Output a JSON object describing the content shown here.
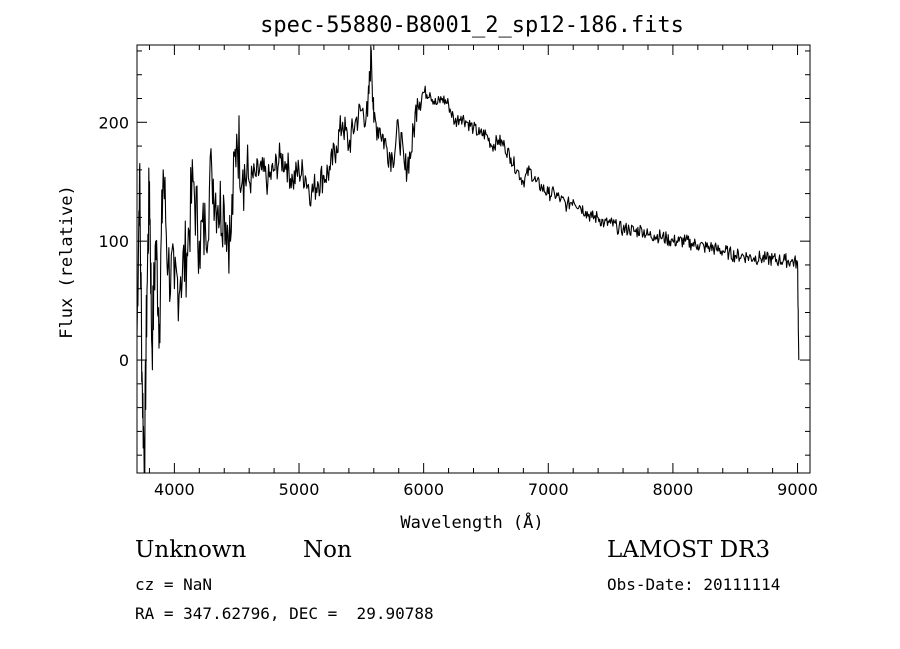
{
  "chart_data": {
    "type": "line",
    "title": "spec-55880-B8001_2_sp12-186.fits",
    "xlabel": "Wavelength (Å)",
    "ylabel": "Flux (relative)",
    "xlim": [
      3700,
      9100
    ],
    "ylim": [
      -95,
      265
    ],
    "x_ticks": [
      4000,
      5000,
      6000,
      7000,
      8000,
      9000
    ],
    "y_ticks": [
      0,
      100,
      200
    ],
    "grid": false,
    "series": [
      {
        "x": [
          3700,
          3720,
          3740,
          3760,
          3780,
          3800,
          3820,
          3850,
          3880,
          3910,
          3950,
          4000,
          4050,
          4100,
          4150,
          4200,
          4250,
          4300,
          4350,
          4400,
          4450,
          4500,
          4550,
          4600,
          4650,
          4700,
          4750,
          4800,
          4850,
          4900,
          4950,
          5000,
          5050,
          5100,
          5150,
          5200,
          5250,
          5300,
          5350,
          5400,
          5450,
          5500,
          5550,
          5580,
          5600,
          5650,
          5700,
          5750,
          5800,
          5850,
          5900,
          5950,
          6000,
          6050,
          6100,
          6150,
          6200,
          6250,
          6300,
          6350,
          6400,
          6450,
          6500,
          6550,
          6600,
          6650,
          6700,
          6750,
          6800,
          6850,
          6900,
          6950,
          7000,
          7050,
          7100,
          7150,
          7200,
          7250,
          7300,
          7350,
          7400,
          7450,
          7500,
          7550,
          7600,
          7650,
          7700,
          7750,
          7800,
          7850,
          7900,
          7950,
          8000,
          8050,
          8100,
          8150,
          8200,
          8250,
          8300,
          8350,
          8400,
          8450,
          8500,
          8550,
          8600,
          8650,
          8700,
          8750,
          8800,
          8850,
          8900,
          8950,
          9000,
          9010
        ],
        "y": [
          20,
          160,
          -10,
          -90,
          60,
          150,
          10,
          100,
          30,
          160,
          80,
          60,
          70,
          90,
          150,
          100,
          110,
          160,
          130,
          130,
          100,
          190,
          160,
          150,
          155,
          160,
          150,
          160,
          170,
          165,
          150,
          160,
          155,
          140,
          150,
          155,
          160,
          180,
          200,
          180,
          200,
          210,
          205,
          260,
          200,
          195,
          180,
          170,
          195,
          160,
          175,
          220,
          225,
          225,
          215,
          220,
          215,
          200,
          205,
          200,
          195,
          190,
          190,
          180,
          185,
          180,
          170,
          160,
          150,
          160,
          150,
          145,
          140,
          140,
          135,
          130,
          135,
          130,
          125,
          120,
          120,
          115,
          115,
          112,
          110,
          110,
          108,
          110,
          105,
          105,
          104,
          102,
          100,
          100,
          100,
          98,
          97,
          95,
          95,
          93,
          92,
          90,
          88,
          88,
          87,
          86,
          86,
          85,
          85,
          84,
          84,
          83,
          82,
          0
        ]
      }
    ]
  },
  "info": {
    "class_label": "Unknown",
    "subclass_label": "Non",
    "survey": "LAMOST DR3",
    "redshift": "cz = NaN",
    "obs_date": "Obs-Date: 20111114",
    "coords": "RA = 347.62796, DEC =  29.90788"
  }
}
